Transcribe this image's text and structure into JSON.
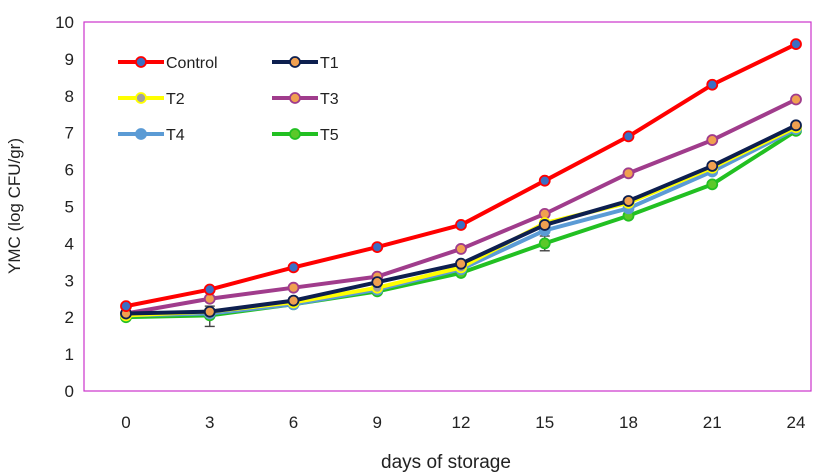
{
  "chart_data": {
    "type": "line",
    "title": "",
    "xlabel": "days of storage",
    "ylabel": "YMC (log CFU/gr)",
    "x": [
      0,
      3,
      6,
      9,
      12,
      15,
      18,
      21,
      24
    ],
    "xticks": [
      "0",
      "3",
      "6",
      "9",
      "12",
      "15",
      "18",
      "21",
      "24"
    ],
    "yticks": [
      "0",
      "1",
      "2",
      "3",
      "4",
      "5",
      "6",
      "7",
      "8",
      "9",
      "10"
    ],
    "ylim": [
      0,
      10
    ],
    "grid": false,
    "legend_position": "top-left",
    "series": [
      {
        "name": "Control",
        "color": "#ff0000",
        "marker_color": "#3a6fc4",
        "values": [
          2.3,
          2.75,
          3.35,
          3.9,
          4.5,
          5.7,
          6.9,
          8.3,
          9.4
        ]
      },
      {
        "name": "T1",
        "color": "#0d1f4f",
        "marker_color": "#f0a050",
        "values": [
          2.1,
          2.15,
          2.45,
          2.95,
          3.45,
          4.5,
          5.15,
          6.1,
          7.2
        ]
      },
      {
        "name": "T2",
        "color": "#ffff00",
        "marker_color": "#a0a0a0",
        "values": [
          2.05,
          2.15,
          2.4,
          2.8,
          3.35,
          4.55,
          5.1,
          6.05,
          7.15
        ]
      },
      {
        "name": "T3",
        "color": "#a03c8c",
        "marker_color": "#f0a050",
        "values": [
          2.1,
          2.5,
          2.8,
          3.1,
          3.85,
          4.8,
          5.9,
          6.8,
          7.9
        ]
      },
      {
        "name": "T4",
        "color": "#5b9bd5",
        "marker_color": "#5b9bd5",
        "values": [
          2.05,
          2.1,
          2.35,
          2.75,
          3.3,
          4.35,
          4.95,
          5.95,
          7.1
        ]
      },
      {
        "name": "T5",
        "color": "#22c022",
        "marker_color": "#5cc82a",
        "values": [
          2.0,
          2.05,
          2.35,
          2.7,
          3.2,
          4.0,
          4.75,
          5.6,
          7.05
        ]
      }
    ],
    "error_bars": [
      {
        "series": "T5",
        "x": 3,
        "low": 1.75,
        "high": 2.3
      },
      {
        "series": "T5",
        "x": 15,
        "low": 3.8,
        "high": 4.2
      }
    ]
  }
}
